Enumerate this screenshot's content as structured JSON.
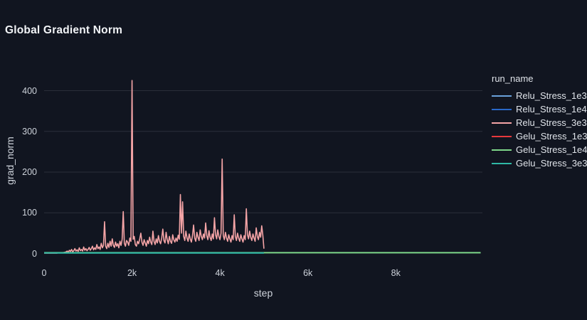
{
  "title": "Global Gradient Norm",
  "colors": {
    "background": "#111520",
    "gridline": "#2a2f3a",
    "title_text": "#f2f4f7",
    "axis_text": "#cdd2da",
    "legend_text": "#dfe3e9"
  },
  "y_axis": {
    "label": "grad_norm",
    "tick_labels": [
      "0",
      "100",
      "200",
      "300",
      "400"
    ],
    "tick_values": [
      0,
      100,
      200,
      300,
      400
    ]
  },
  "x_axis": {
    "label": "step",
    "tick_labels": [
      "0",
      "2k",
      "4k",
      "6k",
      "8k"
    ],
    "tick_values": [
      0,
      2000,
      4000,
      6000,
      8000
    ]
  },
  "legend": {
    "title": "run_name",
    "items": [
      {
        "label": "Relu_Stress_1e3",
        "color": "#6aa1db"
      },
      {
        "label": "Relu_Stress_1e4",
        "color": "#2968c8"
      },
      {
        "label": "Relu_Stress_3e3",
        "color": "#f4a4a6"
      },
      {
        "label": "Gelu_Stress_1e3",
        "color": "#e8393c"
      },
      {
        "label": "Gelu_Stress_1e4",
        "color": "#7ed88a"
      },
      {
        "label": "Gelu_Stress_3e3",
        "color": "#2fb8a5"
      }
    ]
  },
  "chart_data": {
    "type": "line",
    "title": "Global Gradient Norm",
    "xlabel": "step",
    "ylabel": "grad_norm",
    "xlim": [
      0,
      9970
    ],
    "ylim": [
      -10,
      466
    ],
    "grid": true,
    "legend_position": "right",
    "series": [
      {
        "name": "Relu_Stress_1e3",
        "color": "#6aa1db",
        "width": 2,
        "points": [
          [
            0,
            1
          ],
          [
            150,
            1
          ],
          [
            300,
            1
          ]
        ]
      },
      {
        "name": "Relu_Stress_1e4",
        "color": "#2968c8",
        "width": 2,
        "points": [
          [
            0,
            1
          ],
          [
            150,
            1
          ],
          [
            300,
            1
          ]
        ]
      },
      {
        "name": "Relu_Stress_3e3",
        "color": "#f4a4a6",
        "width": 1.6,
        "points": [
          [
            0,
            1.2
          ],
          [
            25,
            1.1
          ],
          [
            50,
            1.3
          ],
          [
            75,
            1.2
          ],
          [
            100,
            1.4
          ],
          [
            125,
            1.3
          ],
          [
            150,
            1.2
          ],
          [
            175,
            1.5
          ],
          [
            200,
            1.4
          ],
          [
            225,
            1.3
          ],
          [
            250,
            1.6
          ],
          [
            275,
            1.4
          ],
          [
            300,
            1.5
          ],
          [
            325,
            1.7
          ],
          [
            350,
            1.6
          ],
          [
            375,
            1.8
          ],
          [
            400,
            2
          ],
          [
            425,
            2.2
          ],
          [
            450,
            2.6
          ],
          [
            475,
            3.2
          ],
          [
            500,
            4
          ],
          [
            525,
            6
          ],
          [
            550,
            3
          ],
          [
            575,
            8
          ],
          [
            600,
            5
          ],
          [
            625,
            10
          ],
          [
            650,
            4
          ],
          [
            675,
            7
          ],
          [
            700,
            12
          ],
          [
            725,
            6
          ],
          [
            750,
            9
          ],
          [
            775,
            5
          ],
          [
            800,
            14
          ],
          [
            825,
            7
          ],
          [
            850,
            10
          ],
          [
            875,
            6
          ],
          [
            900,
            16
          ],
          [
            925,
            8
          ],
          [
            950,
            12
          ],
          [
            975,
            7
          ],
          [
            1000,
            10
          ],
          [
            1025,
            15
          ],
          [
            1050,
            8
          ],
          [
            1075,
            12
          ],
          [
            1100,
            18
          ],
          [
            1125,
            9
          ],
          [
            1150,
            14
          ],
          [
            1175,
            10
          ],
          [
            1200,
            22
          ],
          [
            1225,
            12
          ],
          [
            1250,
            16
          ],
          [
            1275,
            10
          ],
          [
            1300,
            25
          ],
          [
            1325,
            14
          ],
          [
            1350,
            20
          ],
          [
            1375,
            78
          ],
          [
            1400,
            18
          ],
          [
            1425,
            12
          ],
          [
            1450,
            25
          ],
          [
            1475,
            15
          ],
          [
            1500,
            30
          ],
          [
            1525,
            18
          ],
          [
            1550,
            36
          ],
          [
            1575,
            20
          ],
          [
            1600,
            15
          ],
          [
            1625,
            28
          ],
          [
            1650,
            18
          ],
          [
            1675,
            24
          ],
          [
            1700,
            14
          ],
          [
            1725,
            30
          ],
          [
            1750,
            20
          ],
          [
            1775,
            35
          ],
          [
            1800,
            103
          ],
          [
            1825,
            25
          ],
          [
            1850,
            18
          ],
          [
            1875,
            32
          ],
          [
            1900,
            28
          ],
          [
            1925,
            20
          ],
          [
            1950,
            38
          ],
          [
            1975,
            30
          ],
          [
            2000,
            425
          ],
          [
            2025,
            35
          ],
          [
            2050,
            42
          ],
          [
            2075,
            22
          ],
          [
            2100,
            18
          ],
          [
            2125,
            30
          ],
          [
            2150,
            24
          ],
          [
            2175,
            36
          ],
          [
            2200,
            50
          ],
          [
            2225,
            28
          ],
          [
            2250,
            20
          ],
          [
            2275,
            34
          ],
          [
            2300,
            26
          ],
          [
            2325,
            18
          ],
          [
            2350,
            32
          ],
          [
            2375,
            24
          ],
          [
            2400,
            40
          ],
          [
            2425,
            28
          ],
          [
            2450,
            22
          ],
          [
            2475,
            55
          ],
          [
            2500,
            30
          ],
          [
            2525,
            22
          ],
          [
            2550,
            36
          ],
          [
            2575,
            26
          ],
          [
            2600,
            44
          ],
          [
            2625,
            30
          ],
          [
            2650,
            24
          ],
          [
            2675,
            38
          ],
          [
            2700,
            60
          ],
          [
            2725,
            32
          ],
          [
            2750,
            26
          ],
          [
            2775,
            52
          ],
          [
            2800,
            34
          ],
          [
            2825,
            24
          ],
          [
            2850,
            42
          ],
          [
            2875,
            30
          ],
          [
            2900,
            25
          ],
          [
            2925,
            46
          ],
          [
            2950,
            34
          ],
          [
            2975,
            28
          ],
          [
            3000,
            38
          ],
          [
            3025,
            30
          ],
          [
            3050,
            45
          ],
          [
            3075,
            35
          ],
          [
            3100,
            145
          ],
          [
            3125,
            50
          ],
          [
            3150,
            127
          ],
          [
            3175,
            42
          ],
          [
            3200,
            32
          ],
          [
            3225,
            55
          ],
          [
            3250,
            38
          ],
          [
            3275,
            30
          ],
          [
            3300,
            48
          ],
          [
            3325,
            36
          ],
          [
            3350,
            28
          ],
          [
            3375,
            44
          ],
          [
            3400,
            70
          ],
          [
            3425,
            38
          ],
          [
            3450,
            30
          ],
          [
            3475,
            52
          ],
          [
            3500,
            40
          ],
          [
            3525,
            32
          ],
          [
            3550,
            58
          ],
          [
            3575,
            42
          ],
          [
            3600,
            34
          ],
          [
            3625,
            48
          ],
          [
            3650,
            38
          ],
          [
            3675,
            75
          ],
          [
            3700,
            44
          ],
          [
            3725,
            34
          ],
          [
            3750,
            56
          ],
          [
            3775,
            40
          ],
          [
            3800,
            32
          ],
          [
            3825,
            48
          ],
          [
            3850,
            36
          ],
          [
            3875,
            88
          ],
          [
            3900,
            46
          ],
          [
            3925,
            36
          ],
          [
            3950,
            58
          ],
          [
            3975,
            42
          ],
          [
            4000,
            34
          ],
          [
            4025,
            50
          ],
          [
            4050,
            232
          ],
          [
            4075,
            44
          ],
          [
            4100,
            34
          ],
          [
            4125,
            52
          ],
          [
            4150,
            38
          ],
          [
            4175,
            30
          ],
          [
            4200,
            46
          ],
          [
            4225,
            36
          ],
          [
            4250,
            28
          ],
          [
            4275,
            44
          ],
          [
            4300,
            34
          ],
          [
            4325,
            95
          ],
          [
            4350,
            42
          ],
          [
            4375,
            32
          ],
          [
            4400,
            50
          ],
          [
            4425,
            38
          ],
          [
            4450,
            30
          ],
          [
            4475,
            46
          ],
          [
            4500,
            36
          ],
          [
            4525,
            28
          ],
          [
            4550,
            44
          ],
          [
            4575,
            34
          ],
          [
            4600,
            110
          ],
          [
            4625,
            46
          ],
          [
            4650,
            36
          ],
          [
            4675,
            55
          ],
          [
            4700,
            40
          ],
          [
            4725,
            32
          ],
          [
            4750,
            48
          ],
          [
            4775,
            38
          ],
          [
            4800,
            30
          ],
          [
            4825,
            63
          ],
          [
            4850,
            42
          ],
          [
            4875,
            34
          ],
          [
            4900,
            52
          ],
          [
            4925,
            40
          ],
          [
            4950,
            68
          ],
          [
            4975,
            45
          ],
          [
            5000,
            12
          ]
        ]
      },
      {
        "name": "Gelu_Stress_1e3",
        "color": "#e8393c",
        "width": 2,
        "points": [
          [
            0,
            1
          ],
          [
            150,
            1
          ],
          [
            300,
            1
          ]
        ]
      },
      {
        "name": "Gelu_Stress_1e4",
        "color": "#7ed88a",
        "width": 2,
        "points": [
          [
            0,
            2
          ],
          [
            2000,
            2
          ],
          [
            4000,
            2
          ],
          [
            6000,
            2
          ],
          [
            8000,
            2
          ],
          [
            9930,
            2
          ]
        ]
      },
      {
        "name": "Gelu_Stress_3e3",
        "color": "#2fb8a5",
        "width": 2,
        "points": [
          [
            0,
            1.2
          ],
          [
            1000,
            1.2
          ],
          [
            2000,
            1.2
          ],
          [
            3000,
            1.2
          ],
          [
            4000,
            1.2
          ],
          [
            5000,
            1.2
          ]
        ]
      }
    ]
  }
}
